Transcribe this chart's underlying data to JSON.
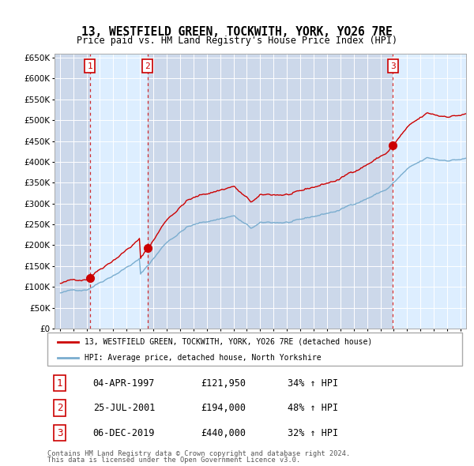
{
  "title": "13, WESTFIELD GREEN, TOCKWITH, YORK, YO26 7RE",
  "subtitle": "Price paid vs. HM Land Registry's House Price Index (HPI)",
  "sale_year_nums": [
    1997.26,
    2001.56,
    2019.92
  ],
  "sale_price_vals": [
    121950,
    194000,
    440000
  ],
  "sale_labels": [
    "1",
    "2",
    "3"
  ],
  "legend_line1": "13, WESTFIELD GREEN, TOCKWITH, YORK, YO26 7RE (detached house)",
  "legend_line2": "HPI: Average price, detached house, North Yorkshire",
  "table_rows": [
    [
      "1",
      "04-APR-1997",
      "£121,950",
      "34% ↑ HPI"
    ],
    [
      "2",
      "25-JUL-2001",
      "£194,000",
      "48% ↑ HPI"
    ],
    [
      "3",
      "06-DEC-2019",
      "£440,000",
      "32% ↑ HPI"
    ]
  ],
  "footnote1": "Contains HM Land Registry data © Crown copyright and database right 2024.",
  "footnote2": "This data is licensed under the Open Government Licence v3.0.",
  "red_color": "#cc0000",
  "blue_color": "#7aadcf",
  "bg_color": "#ddeeff",
  "bg_color_dark": "#c8d8ee",
  "grid_color": "#c8d8ee",
  "ylim": [
    0,
    660000
  ],
  "ytick_vals": [
    0,
    50000,
    100000,
    150000,
    200000,
    250000,
    300000,
    350000,
    400000,
    450000,
    500000,
    550000,
    600000,
    650000
  ],
  "xlim": [
    1994.6,
    2025.4
  ]
}
